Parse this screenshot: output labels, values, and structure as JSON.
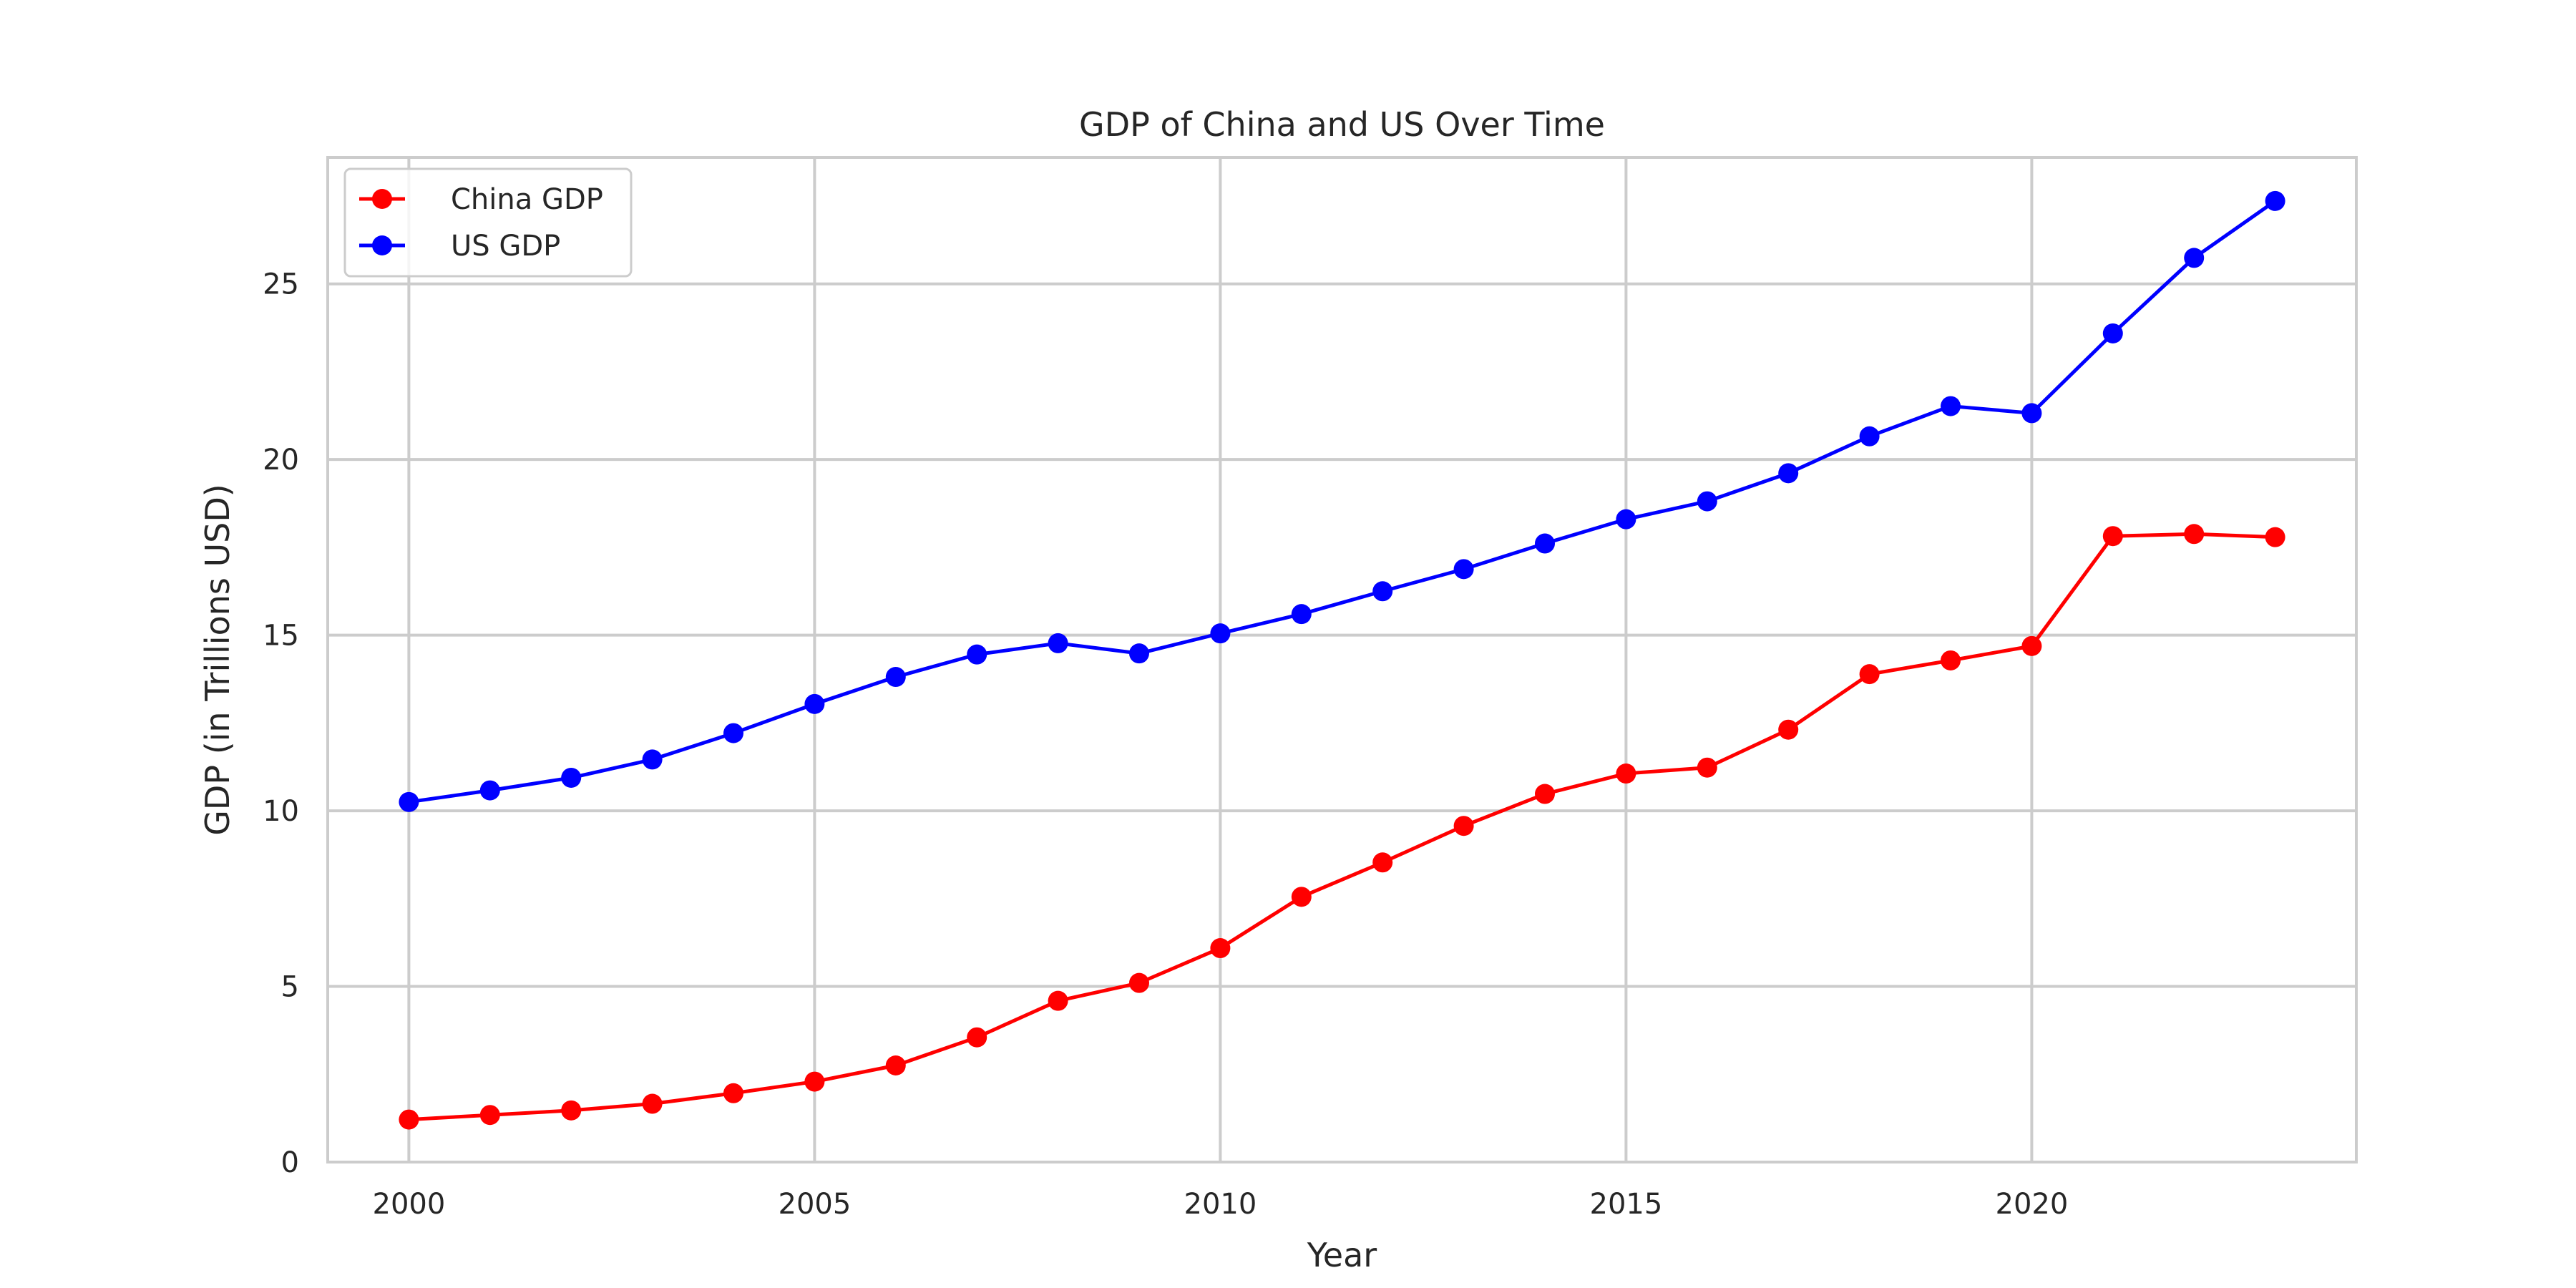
{
  "chart_data": {
    "type": "line",
    "title": "GDP of China and US Over Time",
    "xlabel": "Year",
    "ylabel": "GDP (in Trillions USD)",
    "xlim": [
      1999,
      2024
    ],
    "ylim": [
      0,
      28.6
    ],
    "xticks": [
      2000,
      2005,
      2010,
      2015,
      2020
    ],
    "yticks": [
      0,
      5,
      10,
      15,
      20,
      25
    ],
    "grid": true,
    "legend_position": "top-left",
    "x": [
      2000,
      2001,
      2002,
      2003,
      2004,
      2005,
      2006,
      2007,
      2008,
      2009,
      2010,
      2011,
      2012,
      2013,
      2014,
      2015,
      2016,
      2017,
      2018,
      2019,
      2020,
      2021,
      2022,
      2023
    ],
    "series": [
      {
        "name": "China GDP",
        "color": "#ff0000",
        "marker": "circle",
        "values": [
          1.21,
          1.34,
          1.47,
          1.66,
          1.96,
          2.29,
          2.75,
          3.55,
          4.59,
          5.1,
          6.09,
          7.55,
          8.53,
          9.57,
          10.48,
          11.06,
          11.23,
          12.31,
          13.89,
          14.28,
          14.69,
          17.82,
          17.88,
          17.79
        ]
      },
      {
        "name": "US GDP",
        "color": "#0000ff",
        "marker": "circle",
        "values": [
          10.25,
          10.58,
          10.94,
          11.46,
          12.21,
          13.04,
          13.81,
          14.45,
          14.77,
          14.48,
          15.05,
          15.6,
          16.25,
          16.88,
          17.61,
          18.3,
          18.81,
          19.61,
          20.66,
          21.52,
          21.32,
          23.59,
          25.74,
          27.36
        ]
      }
    ]
  },
  "colors": {
    "grid": "#cccccc",
    "axes_frame": "#cccccc",
    "text": "#262626",
    "background": "#ffffff"
  }
}
